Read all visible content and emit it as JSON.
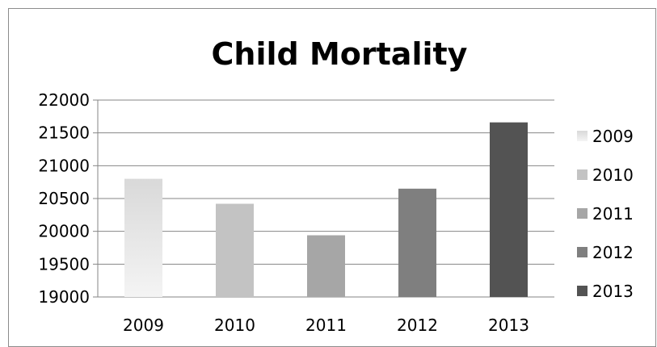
{
  "chart_data": {
    "type": "bar",
    "title": "Child Mortality",
    "xlabel": "",
    "ylabel": "",
    "categories": [
      "2009",
      "2010",
      "2011",
      "2012",
      "2013"
    ],
    "values": [
      20800,
      20420,
      19940,
      20650,
      21660
    ],
    "ylim": [
      19000,
      22000
    ],
    "yticks": [
      "19000",
      "19500",
      "20000",
      "20500",
      "21000",
      "21500",
      "22000"
    ],
    "grid": true,
    "legend": {
      "placement": "right",
      "entries": [
        "2009",
        "2010",
        "2011",
        "2012",
        "2013"
      ]
    },
    "colors": [
      "#e6e6e6",
      "#c3c3c3",
      "#a6a6a6",
      "#7f7f7f",
      "#535353"
    ]
  }
}
